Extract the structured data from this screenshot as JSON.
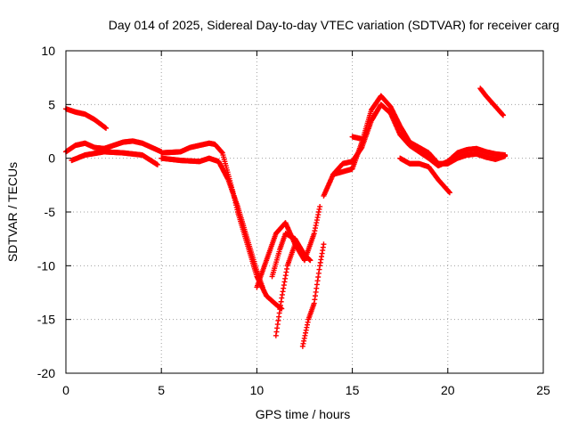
{
  "chart_data": {
    "type": "scatter",
    "title": "Day 014 of 2025, Sidereal Day-to-day VTEC variation (SDTVAR) for receiver carg",
    "xlabel": "GPS time / hours",
    "ylabel": "SDTVAR / TECUs",
    "xlim": [
      0,
      25
    ],
    "ylim": [
      -20,
      10
    ],
    "xticks": [
      "0",
      "5",
      "10",
      "15",
      "20",
      "25"
    ],
    "yticks": [
      "-20",
      "-15",
      "-10",
      "-5",
      "0",
      "5",
      "10"
    ],
    "grid": true,
    "marker_color": "#ff0000",
    "series": [
      {
        "x": [
          0.0,
          0.5,
          1.0,
          1.5,
          2.1
        ],
        "y": [
          4.6,
          4.3,
          4.1,
          3.6,
          2.8
        ]
      },
      {
        "x": [
          0.0,
          0.5,
          1.0,
          1.5,
          2.0,
          2.5,
          3.0,
          3.5,
          4.0,
          4.5,
          5.0
        ],
        "y": [
          0.6,
          1.2,
          1.4,
          1.0,
          0.9,
          1.2,
          1.5,
          1.6,
          1.4,
          1.0,
          0.6
        ]
      },
      {
        "x": [
          0.3,
          1.0,
          2.0,
          3.0,
          4.0,
          4.8
        ],
        "y": [
          -0.2,
          0.3,
          0.6,
          0.5,
          0.3,
          -0.6
        ]
      },
      {
        "x": [
          5.0,
          6.0,
          6.5,
          7.0,
          7.5,
          7.8,
          8.2,
          8.5,
          8.8,
          9.0,
          9.5,
          10.0,
          10.5,
          11.0,
          11.3
        ],
        "y": [
          0.5,
          0.6,
          1.0,
          1.2,
          1.4,
          1.3,
          0.5,
          -1.5,
          -3.5,
          -5.0,
          -8.0,
          -11.0,
          -12.8,
          -13.6,
          -14.0
        ]
      },
      {
        "x": [
          5.0,
          6.0,
          7.0,
          7.5,
          8.0,
          8.5,
          9.0,
          9.5,
          10.0,
          10.3
        ],
        "y": [
          0.0,
          -0.2,
          -0.3,
          0.0,
          -0.3,
          -2.0,
          -4.5,
          -7.5,
          -10.5,
          -12.0
        ]
      },
      {
        "x": [
          10.0,
          10.5,
          11.0,
          11.5,
          12.0,
          12.5,
          13.0,
          13.3
        ],
        "y": [
          -12.0,
          -9.5,
          -7.0,
          -6.0,
          -8.0,
          -9.5,
          -7.0,
          -4.5
        ]
      },
      {
        "x": [
          10.8,
          11.2,
          11.5,
          12.0,
          12.5,
          12.8
        ],
        "y": [
          -11.0,
          -8.5,
          -7.0,
          -7.5,
          -9.0,
          -9.5
        ]
      },
      {
        "x": [
          11.0,
          11.3,
          11.6,
          12.0
        ],
        "y": [
          -16.5,
          -13.0,
          -10.0,
          -8.0
        ]
      },
      {
        "x": [
          12.4,
          12.7,
          13.0,
          13.3,
          13.5
        ],
        "y": [
          -17.5,
          -15.0,
          -13.5,
          -10.0,
          -8.0
        ]
      },
      {
        "x": [
          13.5,
          14.0,
          14.5,
          15.0,
          15.5,
          16.0,
          16.5,
          17.0,
          17.5,
          18.0,
          18.5,
          19.0,
          19.5,
          20.0,
          20.5,
          21.0,
          21.5,
          22.0,
          22.5,
          23.0
        ],
        "y": [
          -3.5,
          -1.5,
          -0.5,
          -0.3,
          1.0,
          3.5,
          5.0,
          4.2,
          2.2,
          1.2,
          0.6,
          0.0,
          -0.7,
          -0.3,
          0.5,
          0.8,
          0.9,
          0.6,
          0.4,
          0.3
        ]
      },
      {
        "x": [
          14.0,
          15.0,
          15.5,
          16.0,
          16.5,
          17.0,
          17.5,
          18.0,
          18.5,
          19.0,
          19.5,
          20.0,
          20.5,
          21.0,
          21.5,
          22.0,
          22.5,
          23.0
        ],
        "y": [
          -1.5,
          -1.0,
          1.5,
          4.5,
          5.8,
          4.8,
          3.0,
          1.5,
          1.0,
          0.5,
          -0.5,
          -0.5,
          0.0,
          0.3,
          0.4,
          0.1,
          -0.1,
          0.2
        ]
      },
      {
        "x": [
          17.5,
          18.0,
          18.5,
          19.0,
          19.5,
          20.1
        ],
        "y": [
          0.0,
          -0.5,
          -0.5,
          -0.8,
          -2.0,
          -3.2
        ]
      },
      {
        "x": [
          15.0,
          15.5
        ],
        "y": [
          2.0,
          1.8
        ]
      },
      {
        "x": [
          21.7,
          22.0,
          22.5,
          22.9
        ],
        "y": [
          6.5,
          5.8,
          4.8,
          4.0
        ]
      }
    ]
  }
}
